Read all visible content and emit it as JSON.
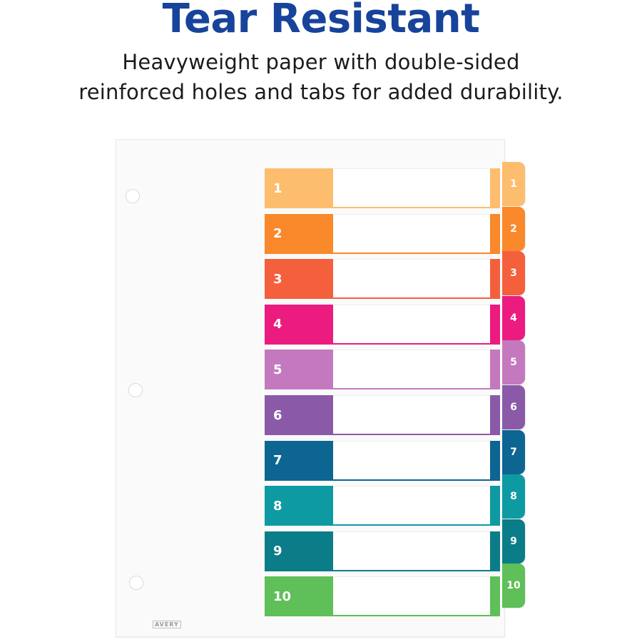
{
  "headline": {
    "text": "Tear Resistant",
    "color": "#17439b"
  },
  "subtext": {
    "line1": "Heavyweight paper with double-sided",
    "line2": "reinforced holes and tabs for added durability."
  },
  "logo": "AVERY",
  "dividers": [
    {
      "label": "1",
      "color": "#fdbd6e"
    },
    {
      "label": "2",
      "color": "#f9892a"
    },
    {
      "label": "3",
      "color": "#f4603c"
    },
    {
      "label": "4",
      "color": "#ec1b7f"
    },
    {
      "label": "5",
      "color": "#c479bf"
    },
    {
      "label": "6",
      "color": "#8a5aa8"
    },
    {
      "label": "7",
      "color": "#0d6591"
    },
    {
      "label": "8",
      "color": "#0e9aa3"
    },
    {
      "label": "9",
      "color": "#0b7d88"
    },
    {
      "label": "10",
      "color": "#5fbf58"
    }
  ]
}
